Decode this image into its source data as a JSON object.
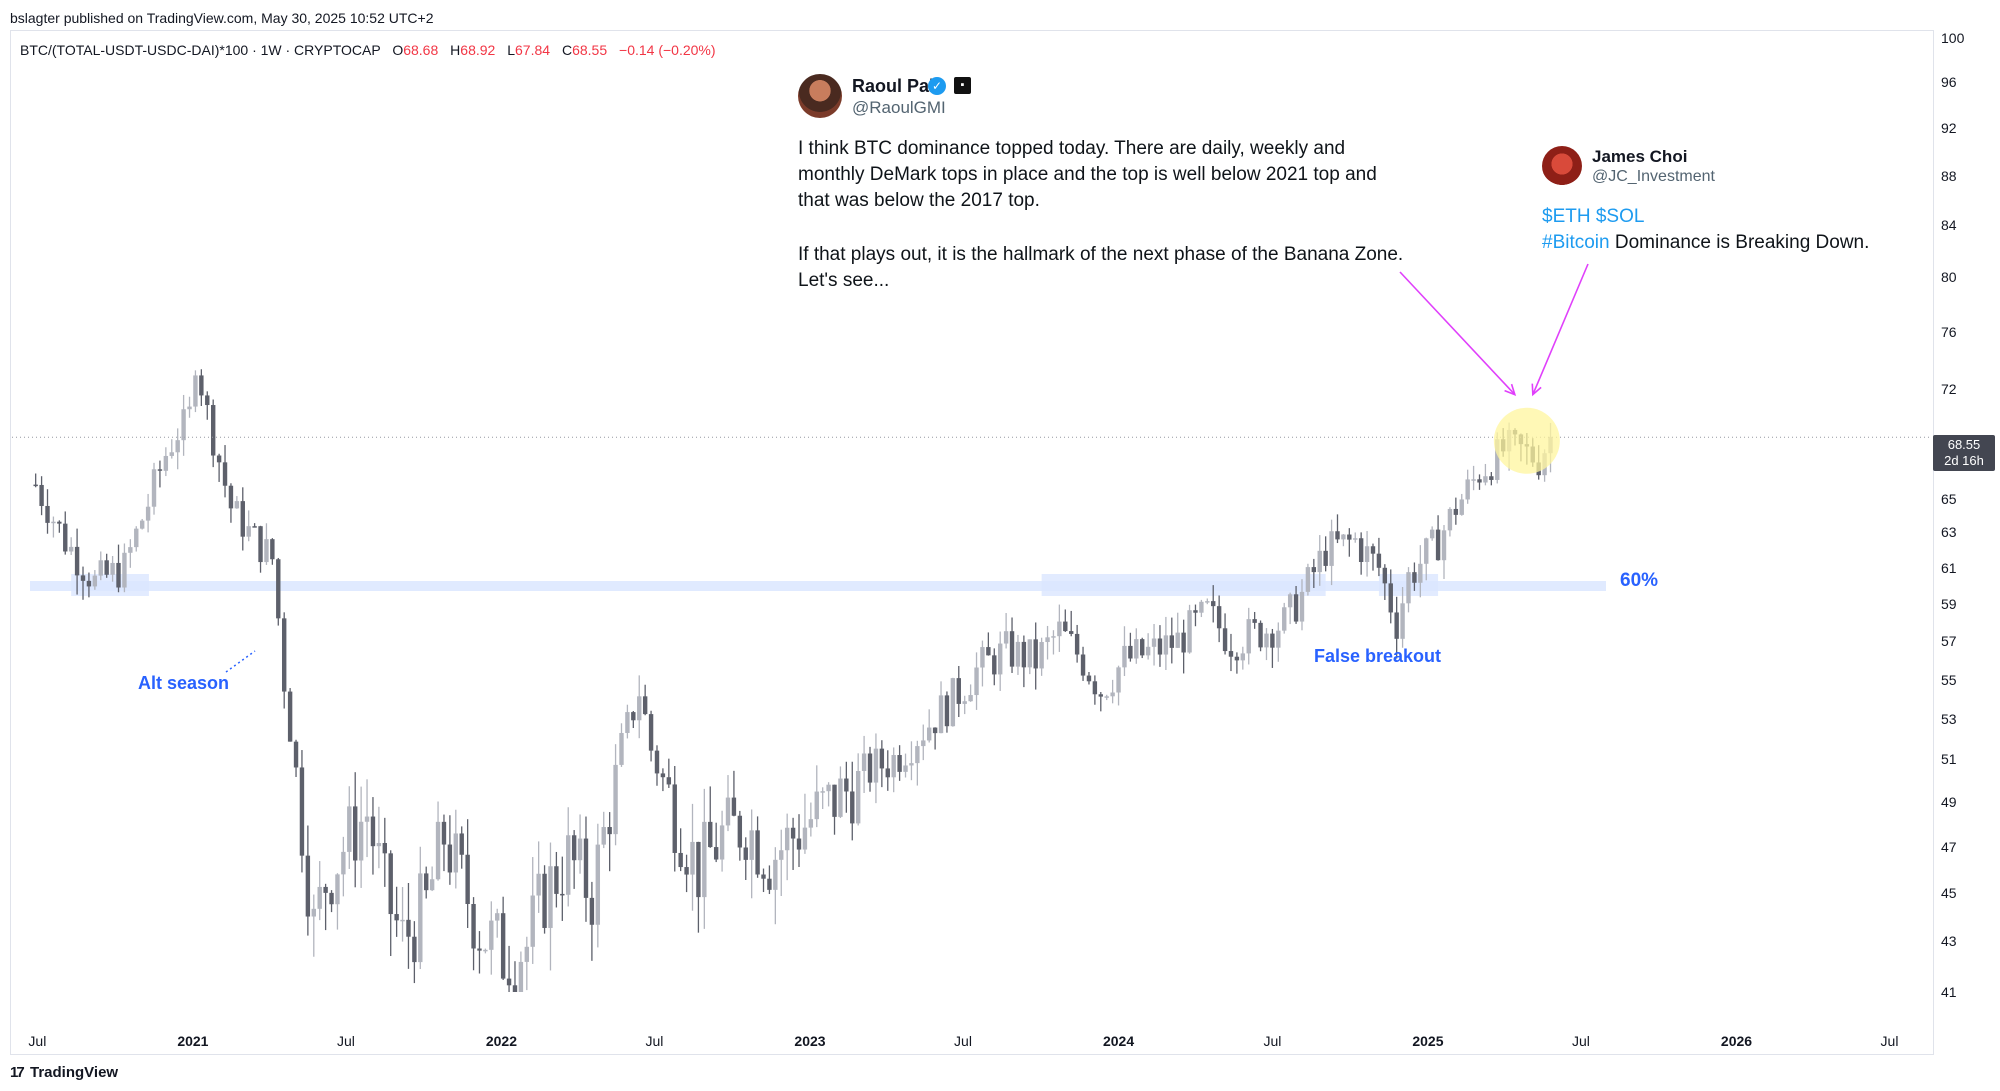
{
  "header": {
    "published": "bslagter published on TradingView.com, May 30, 2025 10:52 UTC+2"
  },
  "symbol": {
    "name": "BTC/(TOTAL-USDT-USDC-DAI)*100 · 1W · CRYPTOCAP",
    "o_label": "O",
    "o": "68.68",
    "h_label": "H",
    "h": "68.92",
    "l_label": "L",
    "l": "67.84",
    "c_label": "C",
    "c": "68.55",
    "change": "−0.14 (−0.20%)"
  },
  "price_tag": {
    "price": "68.55",
    "countdown": "2d 16h"
  },
  "annotations": {
    "level_label": "60%",
    "alt_season": "Alt season",
    "false_breakout": "False breakout"
  },
  "tweet1": {
    "name": "Raoul Pal",
    "handle": "@RaoulGMI",
    "verified_icon": "verified-check-icon",
    "p1": "I think BTC dominance topped today. There are daily, weekly and monthly DeMark tops in place and the top is well below 2021 top and that was below the 2017 top.",
    "p2": "If that plays out, it is the hallmark of the next phase of the Banana Zone. Let's see..."
  },
  "tweet2": {
    "name": "James Choi",
    "handle": "@JC_Investment",
    "tag1": "$ETH",
    "tag2": "$SOL",
    "tag3": "#Bitcoin",
    "text": " Dominance is Breaking Down."
  },
  "footer": {
    "brand": "TradingView"
  },
  "colors": {
    "candle_up": "#b2b5be",
    "candle_down": "#5d606b",
    "accent_blue": "#2962ff",
    "zone_fill": "#dbe6ff",
    "arrow": "#e040fb",
    "highlight": "#fff59d"
  },
  "chart_data": {
    "type": "candlestick",
    "interval": "1W",
    "ylim": [
      40,
      100
    ],
    "yticks": [
      "100",
      "96",
      "92",
      "88",
      "84",
      "80",
      "76",
      "72",
      "68",
      "65",
      "63",
      "61",
      "59",
      "57",
      "55",
      "53",
      "51",
      "49",
      "47",
      "45",
      "43",
      "41"
    ],
    "xticks": [
      "Jul",
      "2021",
      "Jul",
      "2022",
      "Jul",
      "2023",
      "Jul",
      "2024",
      "Jul",
      "2025",
      "Jul",
      "2026",
      "Jul"
    ],
    "xtick_years": [
      false,
      true,
      false,
      true,
      false,
      true,
      false,
      true,
      false,
      true,
      false,
      true,
      false
    ],
    "horizontal_level": 60,
    "last_price": 68.55,
    "close_path": [
      [
        "2020-06-29",
        65.8
      ],
      [
        "2020-08-03",
        62.5
      ],
      [
        "2020-09-07",
        60.2
      ],
      [
        "2020-10-12",
        61.0
      ],
      [
        "2020-11-02",
        63.8
      ],
      [
        "2020-11-30",
        67.5
      ],
      [
        "2020-12-28",
        70.2
      ],
      [
        "2021-01-04",
        74.0
      ],
      [
        "2021-01-25",
        68.5
      ],
      [
        "2021-02-15",
        64.5
      ],
      [
        "2021-03-08",
        63.0
      ],
      [
        "2021-04-05",
        61.5
      ],
      [
        "2021-04-19",
        55.0
      ],
      [
        "2021-05-10",
        48.0
      ],
      [
        "2021-05-24",
        43.5
      ],
      [
        "2021-06-07",
        45.5
      ],
      [
        "2021-06-28",
        47.0
      ],
      [
        "2021-07-26",
        48.5
      ],
      [
        "2021-08-16",
        45.0
      ],
      [
        "2021-09-06",
        43.0
      ],
      [
        "2021-10-04",
        44.5
      ],
      [
        "2021-10-25",
        47.5
      ],
      [
        "2021-11-15",
        45.5
      ],
      [
        "2021-12-06",
        43.5
      ],
      [
        "2022-01-03",
        42.5
      ],
      [
        "2022-01-31",
        42.8
      ],
      [
        "2022-02-21",
        45.0
      ],
      [
        "2022-03-21",
        46.5
      ],
      [
        "2022-04-18",
        45.0
      ],
      [
        "2022-05-02",
        47.5
      ],
      [
        "2022-05-23",
        51.5
      ],
      [
        "2022-06-13",
        54.5
      ],
      [
        "2022-06-27",
        51.5
      ],
      [
        "2022-07-25",
        48.5
      ],
      [
        "2022-08-22",
        46.0
      ],
      [
        "2022-09-19",
        47.5
      ],
      [
        "2022-10-17",
        48.0
      ],
      [
        "2022-11-14",
        46.5
      ],
      [
        "2022-12-12",
        47.5
      ],
      [
        "2023-01-09",
        48.5
      ],
      [
        "2023-02-13",
        49.5
      ],
      [
        "2023-03-13",
        50.5
      ],
      [
        "2023-04-10",
        51.0
      ],
      [
        "2023-05-15",
        52.5
      ],
      [
        "2023-06-19",
        54.0
      ],
      [
        "2023-07-17",
        55.5
      ],
      [
        "2023-08-21",
        56.5
      ],
      [
        "2023-09-25",
        56.0
      ],
      [
        "2023-10-23",
        57.5
      ],
      [
        "2023-11-20",
        56.0
      ],
      [
        "2023-12-11",
        54.5
      ],
      [
        "2024-01-08",
        56.0
      ],
      [
        "2024-02-12",
        56.5
      ],
      [
        "2024-03-11",
        57.0
      ],
      [
        "2024-04-15",
        58.5
      ],
      [
        "2024-05-13",
        57.0
      ],
      [
        "2024-06-17",
        57.5
      ],
      [
        "2024-07-15",
        58.0
      ],
      [
        "2024-08-05",
        59.5
      ],
      [
        "2024-09-02",
        62.0
      ],
      [
        "2024-10-07",
        62.5
      ],
      [
        "2024-11-04",
        61.0
      ],
      [
        "2024-11-25",
        58.0
      ],
      [
        "2024-12-09",
        60.5
      ],
      [
        "2025-01-13",
        62.5
      ],
      [
        "2025-02-03",
        64.5
      ],
      [
        "2025-03-03",
        66.5
      ],
      [
        "2025-04-07",
        68.0
      ],
      [
        "2025-05-12",
        67.2
      ],
      [
        "2025-05-26",
        68.55
      ]
    ]
  }
}
